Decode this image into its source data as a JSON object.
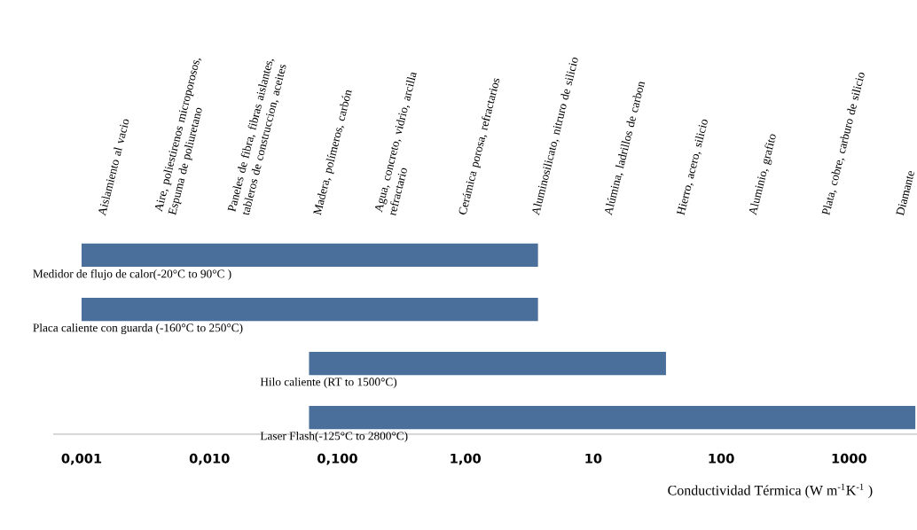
{
  "chart_data": {
    "type": "bar",
    "orientation": "horizontal",
    "log": "x",
    "categories": [
      "Medidor de flujo de calor(-20°C to 90°C )",
      "Placa caliente con guarda (-160°C to 250°C)",
      "Hilo caliente (RT to 1500°C)",
      "Laser Flash(-125°C to 2800°C)"
    ],
    "base": [
      0.001,
      0.001,
      0.06,
      0.06
    ],
    "values": [
      3.7,
      3.7,
      37,
      3300
    ],
    "color": "#4a6f9a",
    "xlim": [
      0.0006,
      3400
    ],
    "xticks": [
      {
        "value": 0.001,
        "label": "0,001"
      },
      {
        "value": 0.01,
        "label": "0,010"
      },
      {
        "value": 0.1,
        "label": "0,100"
      },
      {
        "value": 1,
        "label": "1,00"
      },
      10,
      100,
      1000
    ],
    "xlabel": "Conductividad Térmica (W m$^{-1}$K$^{-1}$ )",
    "annotations": [
      "Aislamiento al vacio",
      "Aire, poliestirenos microporosos, Espuma de poliuretano",
      "Paneles de fibra, fibras aislantes, tableros de construccion, aceites",
      "Madera, polímeros, carbón",
      "Agua, concreto, vidrio, arcilla refractario",
      "Cerámica porosa, refractarios",
      "Aluminosilicato, nitruro de silicio",
      "Alúmina, ladrillos de carbon",
      "Hierro, acero, silicio",
      "Aluminio, grafito",
      "Plata, cobre, carburo de silicio",
      "Diamante"
    ]
  }
}
